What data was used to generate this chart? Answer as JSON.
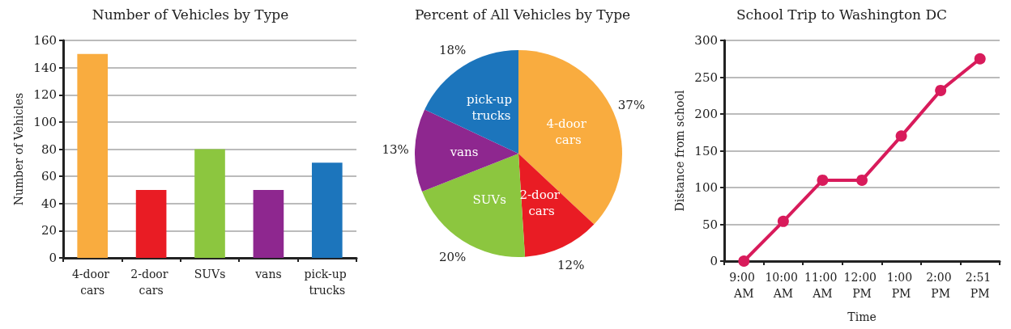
{
  "chart_data": [
    {
      "type": "bar",
      "title": "Number of Vehicles by Type",
      "ylabel": "Number of Vehicles",
      "categories": [
        "4-door cars",
        "2-door cars",
        "SUVs",
        "vans",
        "pick-up trucks"
      ],
      "values": [
        150,
        50,
        80,
        50,
        70
      ],
      "colors": [
        "#f9ac3f",
        "#e91c24",
        "#8cc63f",
        "#8e278f",
        "#1c75bc"
      ],
      "ylim": [
        0,
        160
      ],
      "yticks": [
        0,
        20,
        40,
        60,
        80,
        100,
        120,
        140,
        160
      ],
      "grid": "y"
    },
    {
      "type": "pie",
      "title": "Percent of All Vehicles by Type",
      "categories": [
        "4-door cars",
        "2-door cars",
        "SUVs",
        "vans",
        "pick-up trucks"
      ],
      "values": [
        37,
        12,
        20,
        13,
        18
      ],
      "value_labels": [
        "37%",
        "12%",
        "20%",
        "13%",
        "18%"
      ],
      "colors": [
        "#f9ac3f",
        "#e91c24",
        "#8cc63f",
        "#8e278f",
        "#1c75bc"
      ]
    },
    {
      "type": "line",
      "title": "School Trip to Washington DC",
      "xlabel": "Time",
      "ylabel": "Distance from school",
      "categories": [
        "9:00 AM",
        "10:00 AM",
        "11:00 AM",
        "12:00 PM",
        "1:00 PM",
        "2:00 PM",
        "2:51 PM"
      ],
      "values": [
        0,
        54,
        110,
        110,
        170,
        232,
        275
      ],
      "color": "#d81b5b",
      "ylim": [
        0,
        300
      ],
      "yticks": [
        0,
        50,
        100,
        150,
        200,
        250,
        300
      ],
      "grid": "y",
      "marker": "circle",
      "line_style": "solid"
    }
  ]
}
